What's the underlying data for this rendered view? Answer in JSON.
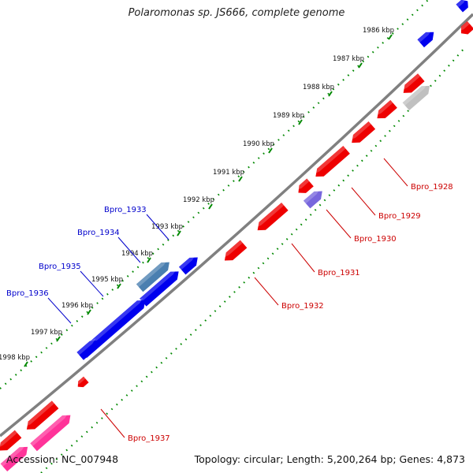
{
  "title": "Polaromonas sp. JS666, complete genome",
  "footer": {
    "accession": "Accession: NC_007948",
    "summary": "Topology: circular; Length: 5,200,264 bp; Genes: 4,873"
  },
  "colors": {
    "forward_gene": "#0000ee",
    "reverse_gene": "#ee0000",
    "reverse_label": "#cc0000",
    "forward_label": "#0000cc",
    "pink_feature": "#ff3399",
    "grey_feature": "#c0c0c0",
    "steel_feature": "#4a7fb0",
    "lavender_feature": "#7766dd",
    "backbone": "#808080",
    "tick_track": "#008800"
  },
  "ticks": [
    "1986 kbp",
    "1987 kbp",
    "1988 kbp",
    "1989 kbp",
    "1990 kbp",
    "1991 kbp",
    "1992 kbp",
    "1993 kbp",
    "1994 kbp",
    "1995 kbp",
    "1996 kbp",
    "1997 kbp",
    "1998 kbp"
  ],
  "genes": [
    {
      "id": "Bpro_1928",
      "strand": "reverse"
    },
    {
      "id": "Bpro_1929",
      "strand": "reverse"
    },
    {
      "id": "Bpro_1930",
      "strand": "reverse"
    },
    {
      "id": "Bpro_1931",
      "strand": "reverse"
    },
    {
      "id": "Bpro_1932",
      "strand": "reverse"
    },
    {
      "id": "Bpro_1933",
      "strand": "forward"
    },
    {
      "id": "Bpro_1934",
      "strand": "forward"
    },
    {
      "id": "Bpro_1935",
      "strand": "forward"
    },
    {
      "id": "Bpro_1936",
      "strand": "forward"
    },
    {
      "id": "Bpro_1937",
      "strand": "reverse"
    }
  ]
}
